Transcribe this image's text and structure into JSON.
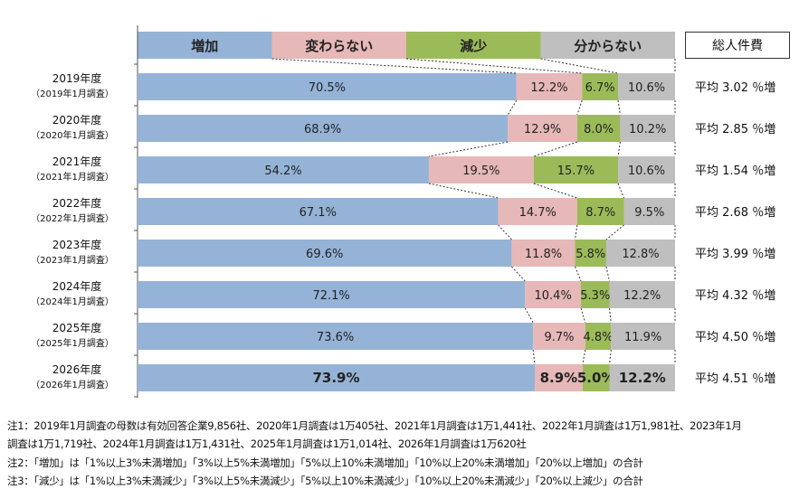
{
  "chart_data": {
    "type": "bar",
    "orientation": "horizontal-stacked-100",
    "legend": [
      {
        "name": "増加",
        "color": "#95b3d7"
      },
      {
        "name": "変わらない",
        "color": "#e6b8b7"
      },
      {
        "name": "減少",
        "color": "#9bbb59"
      },
      {
        "name": "分からない",
        "color": "#bfbfbf"
      }
    ],
    "legend_placement": "top",
    "right_column_header": "総人件費",
    "categories": [
      {
        "year": "2019年度",
        "survey": "（2019年1月調査）"
      },
      {
        "year": "2020年度",
        "survey": "（2020年1月調査）"
      },
      {
        "year": "2021年度",
        "survey": "（2021年1月調査）"
      },
      {
        "year": "2022年度",
        "survey": "（2022年1月調査）"
      },
      {
        "year": "2023年度",
        "survey": "（2023年1月調査）"
      },
      {
        "year": "2024年度",
        "survey": "（2024年1月調査）"
      },
      {
        "year": "2025年度",
        "survey": "（2025年1月調査）"
      },
      {
        "year": "2026年度",
        "survey": "（2026年1月調査）"
      }
    ],
    "series": [
      {
        "name": "増加",
        "values": [
          70.5,
          68.9,
          54.2,
          67.1,
          69.6,
          72.1,
          73.6,
          73.9
        ]
      },
      {
        "name": "変わらない",
        "values": [
          12.2,
          12.9,
          19.5,
          14.7,
          11.8,
          10.4,
          9.7,
          8.9
        ]
      },
      {
        "name": "減少",
        "values": [
          6.7,
          8.0,
          15.7,
          8.7,
          5.8,
          5.3,
          4.8,
          5.0
        ]
      },
      {
        "name": "分からない",
        "values": [
          10.6,
          10.2,
          10.6,
          9.5,
          12.8,
          12.2,
          11.9,
          12.2
        ]
      }
    ],
    "labels": [
      [
        "70.5%",
        "12.2%",
        "6.7%",
        "10.6%"
      ],
      [
        "68.9%",
        "12.9%",
        "8.0%",
        "10.2%"
      ],
      [
        "54.2%",
        "19.5%",
        "15.7%",
        "10.6%"
      ],
      [
        "67.1%",
        "14.7%",
        "8.7%",
        "9.5%"
      ],
      [
        "69.6%",
        "11.8%",
        "5.8%",
        "12.8%"
      ],
      [
        "72.1%",
        "10.4%",
        "5.3%",
        "12.2%"
      ],
      [
        "73.6%",
        "9.7%",
        "4.8%",
        "11.9%"
      ],
      [
        "73.9%",
        "8.9%",
        "5.0%",
        "12.2%"
      ]
    ],
    "averages": [
      "平均 3.02 ％増",
      "平均 2.85 ％増",
      "平均 1.54 ％増",
      "平均 2.68 ％増",
      "平均 3.99 ％増",
      "平均 4.32 ％増",
      "平均 4.50 ％増",
      "平均 4.51 ％増"
    ],
    "xlim": [
      0,
      100
    ],
    "grid": false
  },
  "notes": [
    "注1：2019年1月調査の母数は有効回答企業9,856社、2020年1月調査は1万405社、2021年1月調査は1万1,441社、2022年1月調査は1万1,981社、2023年1月",
    "調査は1万1,719社、2024年1月調査は1万1,431社、2025年1月調査は1万1,014社、2026年1月調査は1万620社",
    "注2：「増加」は「1%以上3%未満増加」「3%以上5%未満増加」「5%以上10%未満増加」「10%以上20%未満増加」「20%以上増加」の合計",
    "注3：「減少」は「1%以上3%未満減少」「3%以上5%未満減少」「5%以上10%未満減少」「10%以上20%未満減少」「20%以上減少」の合計"
  ]
}
